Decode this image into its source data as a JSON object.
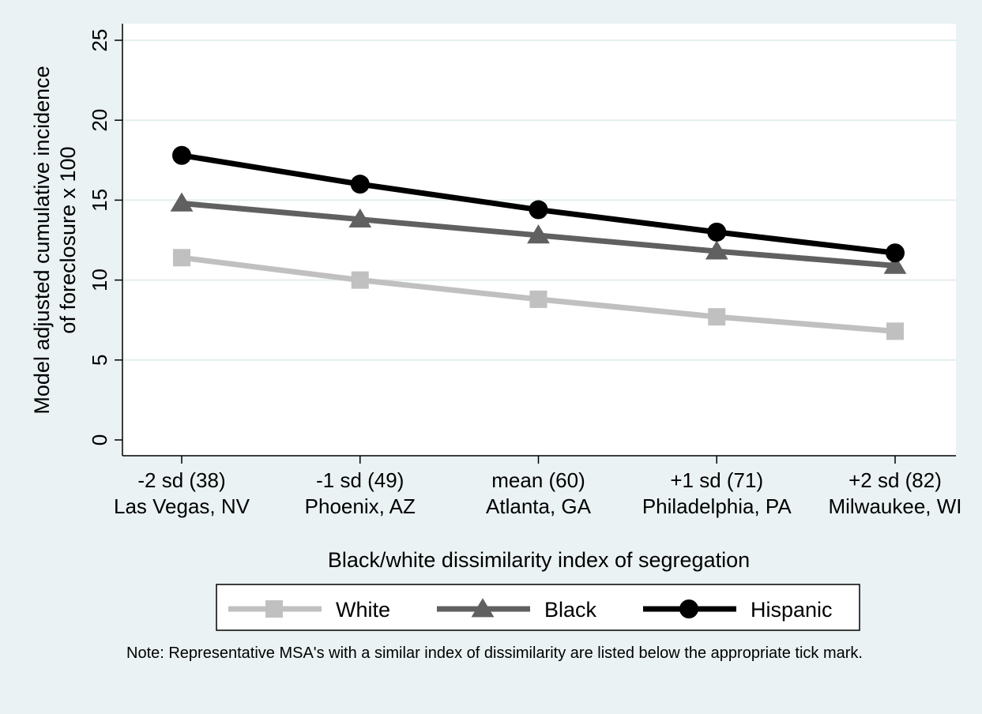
{
  "chart_data": {
    "type": "line",
    "title": "",
    "xlabel": "Black/white dissimilarity index of segregation",
    "ylabel": [
      "Model adjusted cumulative incidence",
      "of foreclosure x 100"
    ],
    "categories": [
      [
        "-2 sd (38)",
        "Las Vegas, NV"
      ],
      [
        "-1 sd (49)",
        "Phoenix, AZ"
      ],
      [
        "mean (60)",
        "Atlanta, GA"
      ],
      [
        "+1 sd (71)",
        "Philadelphia, PA"
      ],
      [
        "+2 sd (82)",
        "Milwaukee, WI"
      ]
    ],
    "ylim": [
      0,
      25
    ],
    "yticks": [
      0,
      5,
      10,
      15,
      20,
      25
    ],
    "grid": true,
    "legend_position": "bottom",
    "series": [
      {
        "name": "White",
        "marker": "square",
        "color": "#c0c0c0",
        "values": [
          11.4,
          10.0,
          8.8,
          7.7,
          6.8
        ]
      },
      {
        "name": "Black",
        "marker": "triangle",
        "color": "#606060",
        "values": [
          14.8,
          13.8,
          12.8,
          11.8,
          10.9
        ]
      },
      {
        "name": "Hispanic",
        "marker": "circle",
        "color": "#000000",
        "values": [
          17.8,
          16.0,
          14.4,
          13.0,
          11.7
        ]
      }
    ],
    "note": "Note: Representative MSA's with a similar index of dissimilarity are listed below the appropriate tick mark."
  }
}
